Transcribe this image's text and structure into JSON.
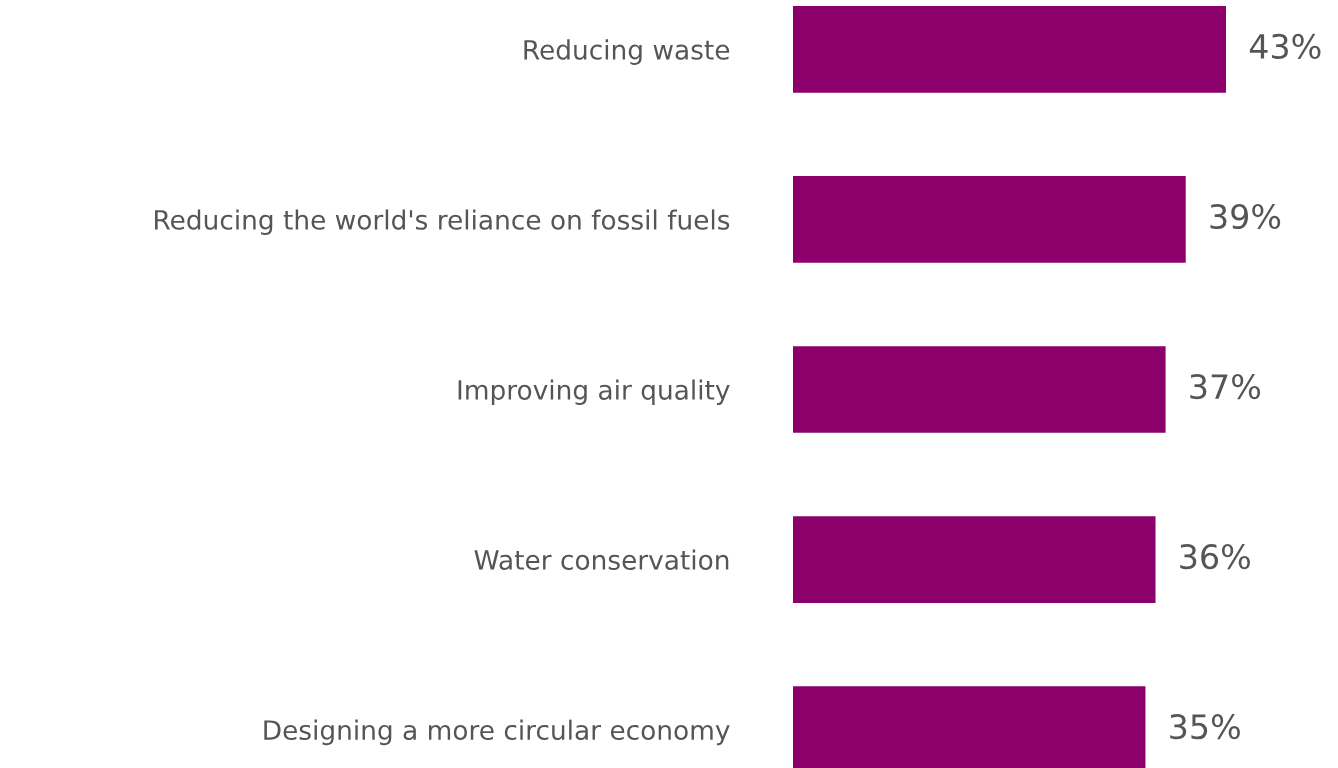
{
  "chart_data": {
    "type": "bar",
    "orientation": "horizontal",
    "categories": [
      "Reducing waste",
      "Reducing the world's reliance on fossil fuels",
      "Improving air quality",
      "Water conservation",
      "Designing a more circular economy"
    ],
    "values": [
      43,
      39,
      37,
      36,
      35
    ],
    "color": "#8b006b",
    "value_labels": [
      "43%",
      "39%",
      "37%",
      "36%",
      "35%"
    ],
    "tick_labels": "y"
  }
}
